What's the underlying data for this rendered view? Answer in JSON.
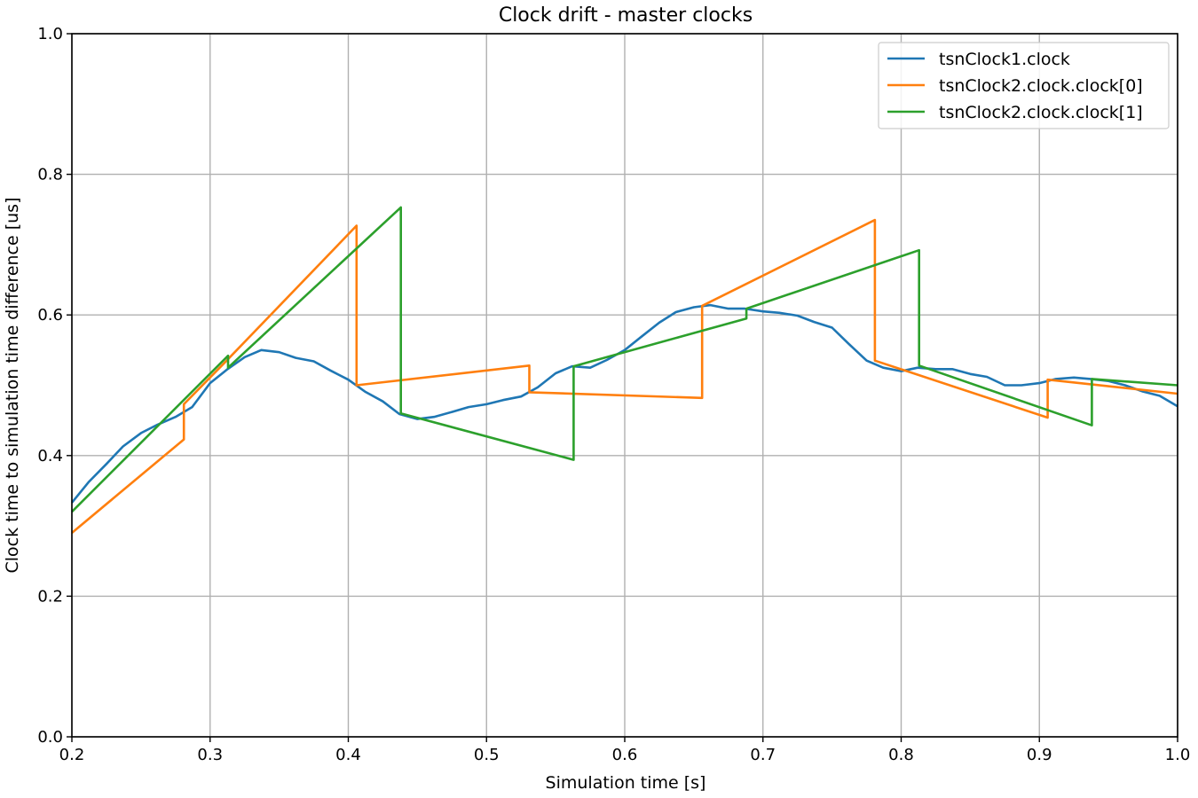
{
  "chart_data": {
    "type": "line",
    "title": "Clock drift - master clocks",
    "xlabel": "Simulation time [s]",
    "ylabel": "Clock time to simulation time difference [us]",
    "xlim": [
      0.2,
      1.0
    ],
    "ylim": [
      0.0,
      1.0
    ],
    "xticks": [
      "0.2",
      "0.3",
      "0.4",
      "0.5",
      "0.6",
      "0.7",
      "0.8",
      "0.9",
      "1.0"
    ],
    "yticks": [
      "0.0",
      "0.2",
      "0.4",
      "0.6",
      "0.8",
      "1.0"
    ],
    "grid": true,
    "legend_position": "top-right",
    "series": [
      {
        "name": "tsnClock1.clock",
        "color": "#1f77b4",
        "x": [
          0.2,
          0.212,
          0.225,
          0.237,
          0.25,
          0.262,
          0.275,
          0.287,
          0.3,
          0.312,
          0.325,
          0.337,
          0.35,
          0.362,
          0.375,
          0.387,
          0.4,
          0.412,
          0.425,
          0.437,
          0.45,
          0.462,
          0.475,
          0.487,
          0.5,
          0.512,
          0.525,
          0.537,
          0.55,
          0.562,
          0.575,
          0.587,
          0.6,
          0.612,
          0.625,
          0.637,
          0.65,
          0.662,
          0.675,
          0.687,
          0.7,
          0.712,
          0.725,
          0.737,
          0.75,
          0.762,
          0.775,
          0.787,
          0.8,
          0.812,
          0.825,
          0.837,
          0.85,
          0.862,
          0.875,
          0.887,
          0.9,
          0.912,
          0.925,
          0.937,
          0.95,
          0.962,
          0.975,
          0.987,
          1.0
        ],
        "y": [
          0.333,
          0.362,
          0.388,
          0.413,
          0.432,
          0.444,
          0.455,
          0.469,
          0.503,
          0.522,
          0.54,
          0.55,
          0.547,
          0.539,
          0.534,
          0.521,
          0.508,
          0.491,
          0.477,
          0.459,
          0.452,
          0.455,
          0.462,
          0.469,
          0.473,
          0.479,
          0.484,
          0.497,
          0.517,
          0.527,
          0.525,
          0.536,
          0.55,
          0.569,
          0.589,
          0.604,
          0.611,
          0.614,
          0.609,
          0.609,
          0.605,
          0.603,
          0.599,
          0.59,
          0.582,
          0.559,
          0.535,
          0.525,
          0.52,
          0.525,
          0.523,
          0.523,
          0.516,
          0.512,
          0.5,
          0.5,
          0.503,
          0.509,
          0.511,
          0.509,
          0.506,
          0.5,
          0.491,
          0.485,
          0.47
        ]
      },
      {
        "name": "tsnClock2.clock.clock[0]",
        "color": "#ff7f0e",
        "x": [
          0.2,
          0.281,
          0.281,
          0.312,
          0.406,
          0.406,
          0.531,
          0.531,
          0.656,
          0.656,
          0.781,
          0.781,
          0.906,
          0.906,
          1.0
        ],
        "y": [
          0.29,
          0.423,
          0.473,
          0.535,
          0.727,
          0.5,
          0.528,
          0.49,
          0.482,
          0.613,
          0.735,
          0.535,
          0.454,
          0.508,
          0.488
        ]
      },
      {
        "name": "tsnClock2.clock.clock[1]",
        "color": "#2ca02c",
        "x": [
          0.2,
          0.313,
          0.313,
          0.438,
          0.438,
          0.563,
          0.563,
          0.688,
          0.688,
          0.813,
          0.813,
          0.938,
          0.938,
          1.0
        ],
        "y": [
          0.32,
          0.542,
          0.525,
          0.753,
          0.46,
          0.394,
          0.527,
          0.595,
          0.609,
          0.692,
          0.528,
          0.443,
          0.509,
          0.5
        ]
      }
    ]
  }
}
